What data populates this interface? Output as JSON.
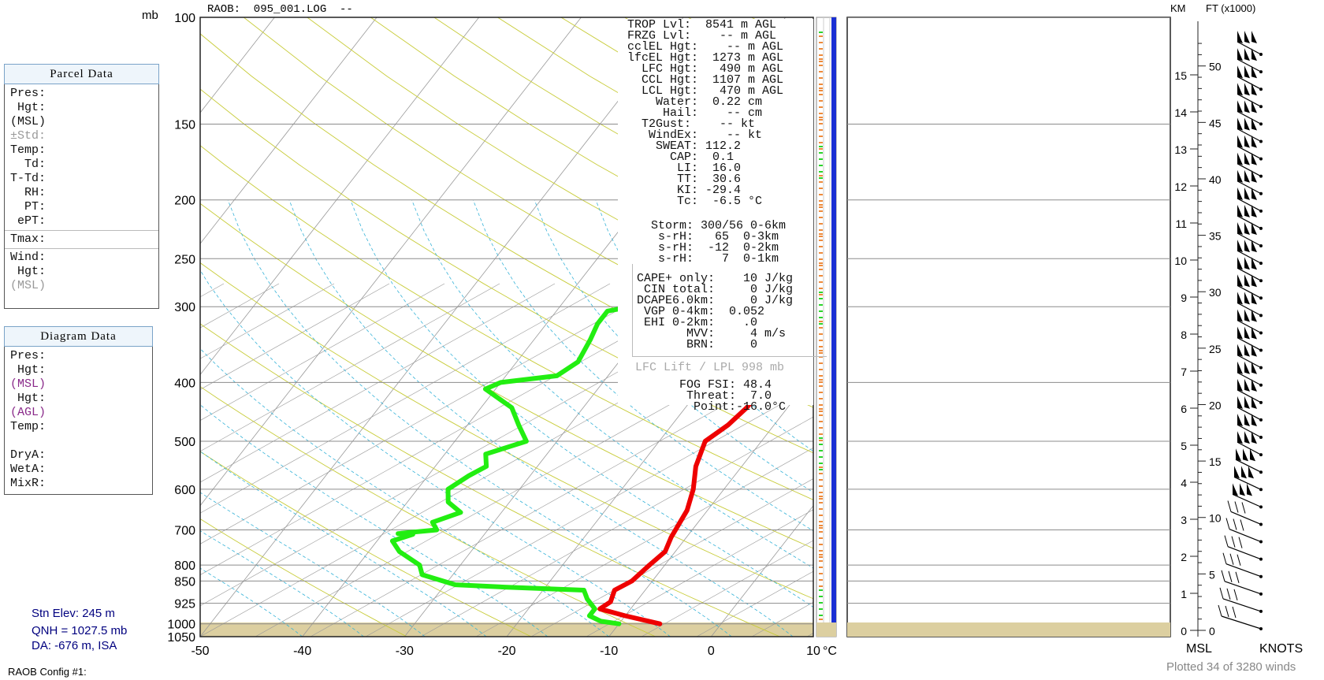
{
  "header": {
    "title": "RAOB:  095_001.LOG  --",
    "mb_label": "mb"
  },
  "parcel_panel": {
    "title": "Parcel Data",
    "rows": [
      {
        "label": "Pres:",
        "style": "normal"
      },
      {
        "label": " Hgt:",
        "style": "normal"
      },
      {
        "label": "(MSL)",
        "style": "normal"
      },
      {
        "label": "±Std:",
        "style": "gray"
      },
      {
        "label": "Temp:",
        "style": "normal"
      },
      {
        "label": "  Td:",
        "style": "normal"
      },
      {
        "label": "T-Td:",
        "style": "normal"
      },
      {
        "label": "  RH:",
        "style": "normal"
      },
      {
        "label": "  PT:",
        "style": "normal"
      },
      {
        "label": " ePT:",
        "style": "normal"
      }
    ],
    "tmax": "Tmax:",
    "wind_rows": [
      {
        "label": "Wind:",
        "style": "normal"
      },
      {
        "label": " Hgt:",
        "style": "normal"
      },
      {
        "label": "(MSL)",
        "style": "gray"
      }
    ]
  },
  "diagram_panel": {
    "title": "Diagram Data",
    "rows": [
      {
        "label": "Pres:",
        "style": "normal"
      },
      {
        "label": " Hgt:",
        "style": "normal"
      },
      {
        "label": "(MSL)",
        "style": "purple"
      },
      {
        "label": " Hgt:",
        "style": "normal"
      },
      {
        "label": "(AGL)",
        "style": "purple"
      },
      {
        "label": "Temp:",
        "style": "normal"
      },
      {
        "label": " ",
        "style": "normal"
      },
      {
        "label": "DryA:",
        "style": "normal"
      },
      {
        "label": "WetA:",
        "style": "normal"
      },
      {
        "label": "MixR:",
        "style": "normal"
      }
    ]
  },
  "indices": {
    "block1": [
      "  TROP Lvl:  8541 m AGL",
      "  FRZG Lvl:    -- m AGL",
      "  cclEL Hgt:    -- m AGL",
      "  lfcEL Hgt:  1273 m AGL",
      "    LFC Hgt:   490 m AGL",
      "    CCL Hgt:  1107 m AGL",
      "    LCL Hgt:   470 m AGL",
      "      Water:  0.22 cm",
      "       Hail:    -- cm",
      "    T2Gust:    -- kt",
      "     WindEx:    -- kt",
      "      SWEAT: 112.2",
      "        CAP:  0.1",
      "         LI:  16.0",
      "         TT:  30.6",
      "         KI: -29.4",
      "         Tc:  -6.5 °C"
    ],
    "block2": [
      "Storm: 300/56 0-6km",
      " s-rH:   65  0-3km",
      " s-rH:  -12  0-2km",
      " s-rH:    7  0-1km"
    ],
    "block3": [
      "CAPE+ only:    10 J/kg",
      " CIN total:     0 J/kg",
      "DCAPE6.0km:     0 J/kg",
      " VGP 0-4km:  0.052",
      " EHI 0-2km:    .0",
      "       MVV:     4 m/s",
      "       BRN:     0"
    ],
    "lfc_lift": "LFC Lift / LPL 998 mb",
    "block4": [
      "FOG FSI: 48.4",
      " Threat:  7.0",
      "  Point:-16.0°C"
    ]
  },
  "station": {
    "elev": "Stn Elev: 245 m",
    "qnh": "QNH = 1027.5 mb",
    "da": "DA: -676 m, ISA"
  },
  "footer": {
    "config": "RAOB Config #1:",
    "plotted": "Plotted 34 of 3280 winds",
    "msl": "MSL",
    "knots": "KNOTS",
    "km": "KM",
    "ft": "FT (x1000)",
    "deg_c": "°C"
  },
  "chart_data": {
    "type": "line",
    "title": "",
    "xlabel": "°C",
    "ylabel": "mb",
    "xlim": [
      -50,
      10
    ],
    "pressure_levels": [
      100,
      150,
      200,
      250,
      300,
      400,
      500,
      600,
      700,
      800,
      850,
      925,
      1000,
      1050
    ],
    "x_ticks": [
      -50,
      -40,
      -30,
      -20,
      -10,
      0,
      10
    ],
    "series": [
      {
        "name": "",
        "color": "#ee0000",
        "points": [
          [
            -6,
            1000
          ],
          [
            -10,
            970
          ],
          [
            -13,
            945
          ],
          [
            -12.5,
            920
          ],
          [
            -13,
            880
          ],
          [
            -12,
            850
          ],
          [
            -11.5,
            800
          ],
          [
            -11,
            760
          ],
          [
            -11.5,
            720
          ],
          [
            -12,
            650
          ],
          [
            -13,
            600
          ],
          [
            -14.5,
            550
          ],
          [
            -15.5,
            500
          ],
          [
            -14.5,
            470
          ],
          [
            -14,
            440
          ],
          [
            -14,
            410
          ],
          [
            -14.5,
            390
          ],
          [
            -16,
            360
          ],
          [
            -17,
            340
          ],
          [
            -17.5,
            320
          ],
          [
            -18,
            300
          ],
          [
            -16,
            295
          ],
          [
            -16.5,
            280
          ],
          [
            -16,
            265
          ],
          [
            -14.5,
            250
          ],
          [
            -13.5,
            235
          ],
          [
            -12,
            222
          ],
          [
            -10,
            210
          ]
        ]
      },
      {
        "name": "",
        "color": "#22ee11",
        "points": [
          [
            -10,
            1000
          ],
          [
            -12,
            990
          ],
          [
            -13.5,
            970
          ],
          [
            -13.5,
            945
          ],
          [
            -15,
            910
          ],
          [
            -16,
            880
          ],
          [
            -24,
            870
          ],
          [
            -29,
            862
          ],
          [
            -33,
            830
          ],
          [
            -34,
            800
          ],
          [
            -37,
            760
          ],
          [
            -38.5,
            730
          ],
          [
            -37,
            712
          ],
          [
            -38.5,
            710
          ],
          [
            -35,
            700
          ],
          [
            -36,
            680
          ],
          [
            -34,
            655
          ],
          [
            -36,
            630
          ],
          [
            -37,
            600
          ],
          [
            -36,
            570
          ],
          [
            -35,
            550
          ],
          [
            -36,
            525
          ],
          [
            -33,
            500
          ],
          [
            -35,
            470
          ],
          [
            -37,
            440
          ],
          [
            -41,
            410
          ],
          [
            -40,
            400
          ],
          [
            -35,
            390
          ],
          [
            -34,
            370
          ],
          [
            -34.5,
            340
          ],
          [
            -35,
            320
          ],
          [
            -35,
            305
          ],
          [
            -33,
            300
          ],
          [
            -33.5,
            280
          ],
          [
            -33.5,
            265
          ],
          [
            -34,
            250
          ],
          [
            -33.5,
            235
          ],
          [
            -32.5,
            220
          ],
          [
            -31,
            210
          ],
          [
            -31,
            195
          ],
          [
            -32,
            180
          ],
          [
            -31,
            170
          ],
          [
            -30.5,
            160
          ],
          [
            -30,
            150
          ],
          [
            -28,
            140
          ],
          [
            -27,
            130
          ],
          [
            -26.5,
            120
          ],
          [
            -24,
            113
          ],
          [
            -22.5,
            107
          ],
          [
            -21,
            100
          ]
        ]
      }
    ],
    "wind_axis": {
      "km_ticks": [
        0,
        1,
        2,
        3,
        4,
        5,
        6,
        7,
        8,
        9,
        10,
        11,
        12,
        13,
        14,
        15
      ],
      "ft_ticks": [
        0,
        5,
        10,
        15,
        20,
        25,
        30,
        35,
        40,
        45,
        50
      ]
    },
    "grid": true
  }
}
